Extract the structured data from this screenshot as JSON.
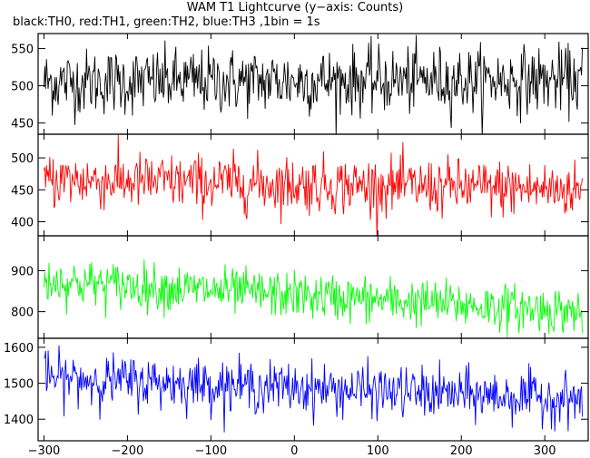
{
  "title": "WAM T1 Lightcurve (y−axis: Counts)",
  "subtitle": "black:TH0, red:TH1, green:TH2, blue:TH3 ,1bin = 1s",
  "chart_data": [
    {
      "type": "line",
      "series": [
        {
          "color": "#000000",
          "mean_start": 505,
          "mean_end": 508,
          "noise_sd": 22,
          "x_start": -300,
          "x_end": 345
        }
      ],
      "yticks": [
        450,
        500,
        550
      ],
      "ylim": [
        435,
        570
      ],
      "xlim": [
        -307,
        352
      ]
    },
    {
      "type": "line",
      "series": [
        {
          "color": "#ff0000",
          "mean_start": 466,
          "mean_end": 450,
          "noise_sd": 22,
          "x_start": -300,
          "x_end": 345
        }
      ],
      "yticks": [
        400,
        450,
        500
      ],
      "ylim": [
        378,
        537
      ],
      "xlim": [
        -307,
        352
      ]
    },
    {
      "type": "line",
      "series": [
        {
          "color": "#00ff00",
          "mean_start": 875,
          "mean_end": 800,
          "noise_sd": 28,
          "x_start": -300,
          "x_end": 345
        }
      ],
      "yticks": [
        800,
        900
      ],
      "ylim": [
        735,
        985
      ],
      "xlim": [
        -307,
        352
      ]
    },
    {
      "type": "line",
      "series": [
        {
          "color": "#0000ff",
          "mean_start": 1515,
          "mean_end": 1455,
          "noise_sd": 35,
          "x_start": -300,
          "x_end": 345
        }
      ],
      "yticks": [
        1400,
        1500,
        1600
      ],
      "ylim": [
        1340,
        1625
      ],
      "xlim": [
        -307,
        352
      ]
    }
  ],
  "xticks": [
    -300,
    -200,
    -100,
    0,
    100,
    200,
    300
  ],
  "xtick_labels": [
    "−300",
    "−200",
    "−100",
    "0",
    "100",
    "200",
    "300"
  ]
}
